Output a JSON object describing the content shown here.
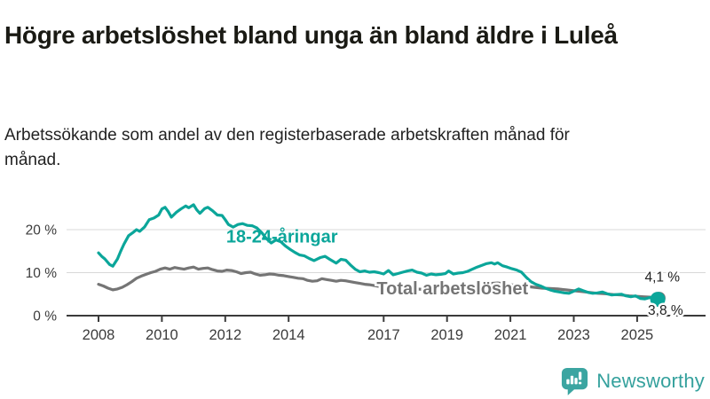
{
  "header": {
    "title": "Högre arbetslöshet bland unga än bland äldre i Luleå",
    "subtitle": "Arbetssökande som andel av den registerbaserade arbetskraften månad för månad."
  },
  "footer": {
    "brand": "Newsworthy",
    "brand_color": "#35a19d",
    "icon": "newsworthy-bar-chart-bubble-icon"
  },
  "chart_data": {
    "type": "line",
    "title": "Högre arbetslöshet bland unga än bland äldre i Luleå",
    "subtitle": "Arbetssökande som andel av den registerbaserade arbetskraften månad för månad.",
    "xlabel": "",
    "ylabel": "",
    "ylim": [
      0,
      27
    ],
    "xlim": [
      2007,
      2027.2
    ],
    "grid": "horizontal",
    "legend_position": "inline-labels",
    "axis_color": "#3b3b3b",
    "gridline_color": "#d8d8d8",
    "yticks": [
      {
        "value": 0,
        "label": "0 %"
      },
      {
        "value": 10,
        "label": "10 %"
      },
      {
        "value": 20,
        "label": "20 %"
      }
    ],
    "xticks": [
      {
        "value": 2008,
        "label": "2008"
      },
      {
        "value": 2010,
        "label": "2010"
      },
      {
        "value": 2012,
        "label": "2012"
      },
      {
        "value": 2014,
        "label": "2014"
      },
      {
        "value": 2017,
        "label": "2017"
      },
      {
        "value": 2019,
        "label": "2019"
      },
      {
        "value": 2021,
        "label": "2021"
      },
      {
        "value": 2023,
        "label": "2023"
      },
      {
        "value": 2025,
        "label": "2025"
      }
    ],
    "series": [
      {
        "name": "Total arbetslöshet",
        "color": "#757575",
        "latest_value_label": "4,1 %",
        "dot_radius": 7,
        "points": [
          [
            2008.0,
            7.3
          ],
          [
            2008.15,
            6.9
          ],
          [
            2008.3,
            6.4
          ],
          [
            2008.45,
            6.0
          ],
          [
            2008.6,
            6.2
          ],
          [
            2008.75,
            6.6
          ],
          [
            2008.9,
            7.2
          ],
          [
            2009.05,
            7.9
          ],
          [
            2009.2,
            8.7
          ],
          [
            2009.35,
            9.2
          ],
          [
            2009.5,
            9.6
          ],
          [
            2009.65,
            10.0
          ],
          [
            2009.8,
            10.3
          ],
          [
            2009.95,
            10.8
          ],
          [
            2010.1,
            11.1
          ],
          [
            2010.25,
            10.8
          ],
          [
            2010.4,
            11.2
          ],
          [
            2010.55,
            11.0
          ],
          [
            2010.7,
            10.8
          ],
          [
            2010.85,
            11.1
          ],
          [
            2011.0,
            11.3
          ],
          [
            2011.15,
            10.8
          ],
          [
            2011.3,
            11.0
          ],
          [
            2011.45,
            11.1
          ],
          [
            2011.6,
            10.7
          ],
          [
            2011.75,
            10.4
          ],
          [
            2011.9,
            10.3
          ],
          [
            2012.05,
            10.6
          ],
          [
            2012.2,
            10.5
          ],
          [
            2012.35,
            10.2
          ],
          [
            2012.5,
            9.8
          ],
          [
            2012.65,
            10.0
          ],
          [
            2012.8,
            10.1
          ],
          [
            2012.95,
            9.7
          ],
          [
            2013.1,
            9.4
          ],
          [
            2013.25,
            9.5
          ],
          [
            2013.4,
            9.7
          ],
          [
            2013.55,
            9.6
          ],
          [
            2013.7,
            9.4
          ],
          [
            2013.85,
            9.3
          ],
          [
            2014.0,
            9.1
          ],
          [
            2014.15,
            8.9
          ],
          [
            2014.3,
            8.7
          ],
          [
            2014.45,
            8.6
          ],
          [
            2014.6,
            8.2
          ],
          [
            2014.75,
            8.0
          ],
          [
            2014.9,
            8.1
          ],
          [
            2015.05,
            8.6
          ],
          [
            2015.2,
            8.4
          ],
          [
            2015.35,
            8.2
          ],
          [
            2015.5,
            8.0
          ],
          [
            2015.65,
            8.2
          ],
          [
            2015.8,
            8.1
          ],
          [
            2015.95,
            7.9
          ],
          [
            2016.1,
            7.7
          ],
          [
            2016.25,
            7.5
          ],
          [
            2016.4,
            7.3
          ],
          [
            2016.55,
            7.2
          ],
          [
            2016.7,
            7.0
          ],
          [
            2016.85,
            6.8
          ],
          [
            2017.0,
            6.6
          ],
          [
            2017.25,
            6.5
          ],
          [
            2017.5,
            6.4
          ],
          [
            2017.75,
            6.3
          ],
          [
            2018.0,
            6.2
          ],
          [
            2018.25,
            6.1
          ],
          [
            2018.5,
            6.0
          ],
          [
            2018.75,
            6.0
          ],
          [
            2019.0,
            6.1
          ],
          [
            2019.25,
            6.0
          ],
          [
            2019.5,
            6.1
          ],
          [
            2019.75,
            6.3
          ],
          [
            2020.0,
            6.6
          ],
          [
            2020.2,
            7.1
          ],
          [
            2020.4,
            7.5
          ],
          [
            2020.6,
            7.6
          ],
          [
            2020.8,
            7.4
          ],
          [
            2021.0,
            7.2
          ],
          [
            2021.25,
            7.0
          ],
          [
            2021.5,
            6.8
          ],
          [
            2021.75,
            6.6
          ],
          [
            2022.0,
            6.4
          ],
          [
            2022.25,
            6.3
          ],
          [
            2022.5,
            6.2
          ],
          [
            2022.75,
            6.0
          ],
          [
            2023.0,
            5.8
          ],
          [
            2023.25,
            5.6
          ],
          [
            2023.5,
            5.4
          ],
          [
            2023.75,
            5.2
          ],
          [
            2024.0,
            5.1
          ],
          [
            2024.25,
            4.9
          ],
          [
            2024.5,
            4.8
          ],
          [
            2024.75,
            4.6
          ],
          [
            2025.0,
            4.5
          ],
          [
            2025.2,
            4.4
          ],
          [
            2025.4,
            4.3
          ],
          [
            2025.55,
            4.2
          ],
          [
            2025.7,
            4.1
          ]
        ]
      },
      {
        "name": "18-24-åringar",
        "color": "#0ba69a",
        "latest_value_label": "3,8 %",
        "dot_radius": 8.5,
        "points": [
          [
            2008.0,
            14.6
          ],
          [
            2008.1,
            13.8
          ],
          [
            2008.2,
            13.2
          ],
          [
            2008.35,
            11.9
          ],
          [
            2008.45,
            11.5
          ],
          [
            2008.6,
            13.2
          ],
          [
            2008.7,
            15.0
          ],
          [
            2008.8,
            16.6
          ],
          [
            2008.95,
            18.6
          ],
          [
            2009.1,
            19.4
          ],
          [
            2009.2,
            20.0
          ],
          [
            2009.3,
            19.6
          ],
          [
            2009.45,
            20.6
          ],
          [
            2009.6,
            22.3
          ],
          [
            2009.75,
            22.7
          ],
          [
            2009.9,
            23.4
          ],
          [
            2010.0,
            24.8
          ],
          [
            2010.1,
            25.2
          ],
          [
            2010.2,
            24.2
          ],
          [
            2010.3,
            22.9
          ],
          [
            2010.45,
            24.0
          ],
          [
            2010.6,
            24.8
          ],
          [
            2010.75,
            25.5
          ],
          [
            2010.85,
            25.1
          ],
          [
            2011.0,
            25.8
          ],
          [
            2011.1,
            24.6
          ],
          [
            2011.2,
            23.8
          ],
          [
            2011.35,
            24.9
          ],
          [
            2011.45,
            25.2
          ],
          [
            2011.6,
            24.4
          ],
          [
            2011.75,
            23.4
          ],
          [
            2011.9,
            23.3
          ],
          [
            2012.0,
            22.3
          ],
          [
            2012.1,
            21.2
          ],
          [
            2012.25,
            20.6
          ],
          [
            2012.4,
            21.2
          ],
          [
            2012.55,
            21.4
          ],
          [
            2012.7,
            21.0
          ],
          [
            2012.85,
            20.9
          ],
          [
            2013.0,
            20.4
          ],
          [
            2013.15,
            19.3
          ],
          [
            2013.3,
            17.9
          ],
          [
            2013.45,
            16.9
          ],
          [
            2013.6,
            17.6
          ],
          [
            2013.75,
            17.2
          ],
          [
            2013.9,
            16.2
          ],
          [
            2014.05,
            15.4
          ],
          [
            2014.2,
            14.7
          ],
          [
            2014.35,
            14.1
          ],
          [
            2014.5,
            13.9
          ],
          [
            2014.65,
            13.3
          ],
          [
            2014.8,
            12.8
          ],
          [
            2015.0,
            13.5
          ],
          [
            2015.15,
            13.8
          ],
          [
            2015.3,
            13.1
          ],
          [
            2015.5,
            12.2
          ],
          [
            2015.65,
            13.1
          ],
          [
            2015.8,
            12.9
          ],
          [
            2015.95,
            11.8
          ],
          [
            2016.1,
            10.8
          ],
          [
            2016.25,
            10.2
          ],
          [
            2016.4,
            10.4
          ],
          [
            2016.55,
            10.1
          ],
          [
            2016.7,
            10.2
          ],
          [
            2016.85,
            10.0
          ],
          [
            2017.0,
            9.7
          ],
          [
            2017.15,
            10.5
          ],
          [
            2017.3,
            9.5
          ],
          [
            2017.45,
            9.8
          ],
          [
            2017.6,
            10.1
          ],
          [
            2017.75,
            10.4
          ],
          [
            2017.9,
            10.6
          ],
          [
            2018.05,
            10.1
          ],
          [
            2018.2,
            9.9
          ],
          [
            2018.35,
            9.4
          ],
          [
            2018.5,
            9.7
          ],
          [
            2018.65,
            9.5
          ],
          [
            2018.8,
            9.6
          ],
          [
            2018.95,
            9.8
          ],
          [
            2019.05,
            10.4
          ],
          [
            2019.2,
            9.7
          ],
          [
            2019.35,
            9.9
          ],
          [
            2019.5,
            10.0
          ],
          [
            2019.65,
            10.3
          ],
          [
            2019.8,
            10.8
          ],
          [
            2019.95,
            11.3
          ],
          [
            2020.1,
            11.7
          ],
          [
            2020.25,
            12.1
          ],
          [
            2020.4,
            12.3
          ],
          [
            2020.5,
            12.0
          ],
          [
            2020.6,
            12.3
          ],
          [
            2020.75,
            11.6
          ],
          [
            2020.9,
            11.3
          ],
          [
            2021.05,
            10.9
          ],
          [
            2021.2,
            10.6
          ],
          [
            2021.35,
            10.1
          ],
          [
            2021.5,
            8.9
          ],
          [
            2021.65,
            7.9
          ],
          [
            2021.8,
            7.3
          ],
          [
            2021.95,
            6.9
          ],
          [
            2022.1,
            6.4
          ],
          [
            2022.25,
            6.0
          ],
          [
            2022.4,
            5.7
          ],
          [
            2022.55,
            5.5
          ],
          [
            2022.7,
            5.3
          ],
          [
            2022.85,
            5.2
          ],
          [
            2023.0,
            5.7
          ],
          [
            2023.15,
            6.2
          ],
          [
            2023.3,
            5.8
          ],
          [
            2023.45,
            5.4
          ],
          [
            2023.6,
            5.2
          ],
          [
            2023.75,
            5.3
          ],
          [
            2023.9,
            5.5
          ],
          [
            2024.05,
            5.1
          ],
          [
            2024.2,
            4.8
          ],
          [
            2024.35,
            4.9
          ],
          [
            2024.5,
            5.0
          ],
          [
            2024.65,
            4.6
          ],
          [
            2024.8,
            4.4
          ],
          [
            2024.95,
            4.6
          ],
          [
            2025.1,
            4.0
          ],
          [
            2025.25,
            3.9
          ],
          [
            2025.4,
            4.2
          ],
          [
            2025.55,
            4.1
          ],
          [
            2025.65,
            3.8
          ]
        ]
      }
    ],
    "annotations": [
      {
        "text": "18-24-åringar",
        "x": 2012.03,
        "y": 18.1,
        "color": "#0ba69a",
        "size": 20,
        "weight": "bold",
        "anchor": "start",
        "halo": false,
        "name": "series-label-18-24"
      },
      {
        "text": "Total arbetslöshet",
        "x": 2016.78,
        "y": 6.0,
        "color": "#757575",
        "size": 20,
        "weight": "bold",
        "anchor": "start",
        "halo": true,
        "name": "series-label-total"
      },
      {
        "text": "4,1 %",
        "x": 2026.35,
        "y": 8.8,
        "color": "#222222",
        "size": 15.5,
        "weight": "normal",
        "anchor": "end",
        "halo": true,
        "name": "end-value-label-total"
      },
      {
        "text": "3,8 %",
        "x": 2026.45,
        "y": 1.1,
        "color": "#222222",
        "size": 15.5,
        "weight": "normal",
        "anchor": "end",
        "halo": true,
        "name": "end-value-label-18-24"
      }
    ]
  }
}
